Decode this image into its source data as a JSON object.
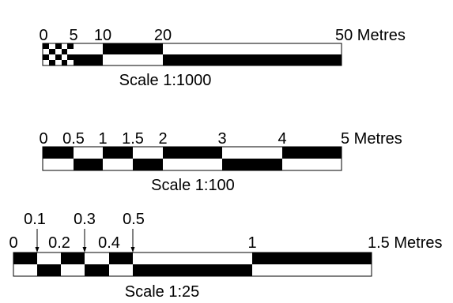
{
  "colors": {
    "ink": "#000000",
    "paper": "#ffffff"
  },
  "scales": [
    {
      "caption": "Scale 1:1000",
      "unit_label": "50 Metres",
      "ticks": [
        {
          "value": 0,
          "label": "0"
        },
        {
          "value": 5,
          "label": "5"
        },
        {
          "value": 10,
          "label": "10"
        },
        {
          "value": 20,
          "label": "20"
        },
        {
          "value": 50,
          "label": "50 Metres"
        }
      ],
      "subdivision_step": 1,
      "subdivision_end": 10
    },
    {
      "caption": "Scale 1:100",
      "unit_label": "5 Metres",
      "ticks": [
        {
          "value": 0,
          "label": "0"
        },
        {
          "value": 0.5,
          "label": "0.5"
        },
        {
          "value": 1,
          "label": "1"
        },
        {
          "value": 1.5,
          "label": "1.5"
        },
        {
          "value": 2,
          "label": "2"
        },
        {
          "value": 3,
          "label": "3"
        },
        {
          "value": 4,
          "label": "4"
        },
        {
          "value": 5,
          "label": "5 Metres"
        }
      ]
    },
    {
      "caption": "Scale 1:25",
      "unit_label": "1.5 Metres",
      "ticks": [
        {
          "value": 0,
          "label": "0"
        },
        {
          "value": 0.1,
          "label": "0.1"
        },
        {
          "value": 0.2,
          "label": "0.2"
        },
        {
          "value": 0.3,
          "label": "0.3"
        },
        {
          "value": 0.4,
          "label": "0.4"
        },
        {
          "value": 0.5,
          "label": "0.5"
        },
        {
          "value": 1,
          "label": "1"
        },
        {
          "value": 1.5,
          "label": "1.5 Metres"
        }
      ]
    }
  ]
}
